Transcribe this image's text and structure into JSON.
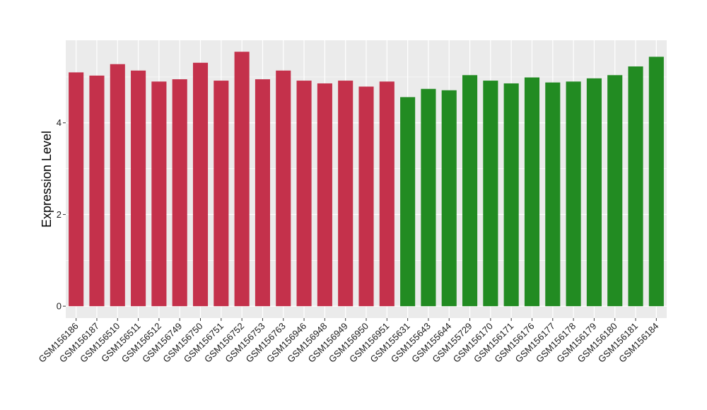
{
  "chart_data": {
    "type": "bar",
    "title": "",
    "xlabel": "",
    "ylabel": "Expression Level",
    "ylim": [
      -0.26,
      5.8
    ],
    "y_ticks": [
      0,
      2,
      4
    ],
    "grid": true,
    "legend": "none",
    "categories": [
      "GSM156186",
      "GSM156187",
      "GSM156510",
      "GSM156511",
      "GSM156512",
      "GSM156749",
      "GSM156750",
      "GSM156751",
      "GSM156752",
      "GSM156753",
      "GSM156763",
      "GSM156946",
      "GSM156948",
      "GSM156949",
      "GSM156950",
      "GSM156951",
      "GSM155631",
      "GSM155643",
      "GSM155644",
      "GSM155729",
      "GSM156170",
      "GSM156171",
      "GSM156176",
      "GSM156177",
      "GSM156178",
      "GSM156179",
      "GSM156180",
      "GSM156181",
      "GSM156184"
    ],
    "values": [
      5.1,
      5.03,
      5.28,
      5.14,
      4.9,
      4.95,
      5.31,
      4.92,
      5.55,
      4.95,
      5.14,
      4.92,
      4.86,
      4.92,
      4.79,
      4.9,
      4.56,
      4.74,
      4.71,
      5.04,
      4.92,
      4.86,
      4.99,
      4.88,
      4.9,
      4.97,
      5.04,
      5.23,
      5.44
    ],
    "group_colors": [
      "#c4314b",
      "#c4314b",
      "#c4314b",
      "#c4314b",
      "#c4314b",
      "#c4314b",
      "#c4314b",
      "#c4314b",
      "#c4314b",
      "#c4314b",
      "#c4314b",
      "#c4314b",
      "#c4314b",
      "#c4314b",
      "#c4314b",
      "#c4314b",
      "#228b22",
      "#228b22",
      "#228b22",
      "#228b22",
      "#228b22",
      "#228b22",
      "#228b22",
      "#228b22",
      "#228b22",
      "#228b22",
      "#228b22",
      "#228b22",
      "#228b22"
    ],
    "panel_background": "#ebebeb",
    "grid_color": "#ffffff"
  }
}
